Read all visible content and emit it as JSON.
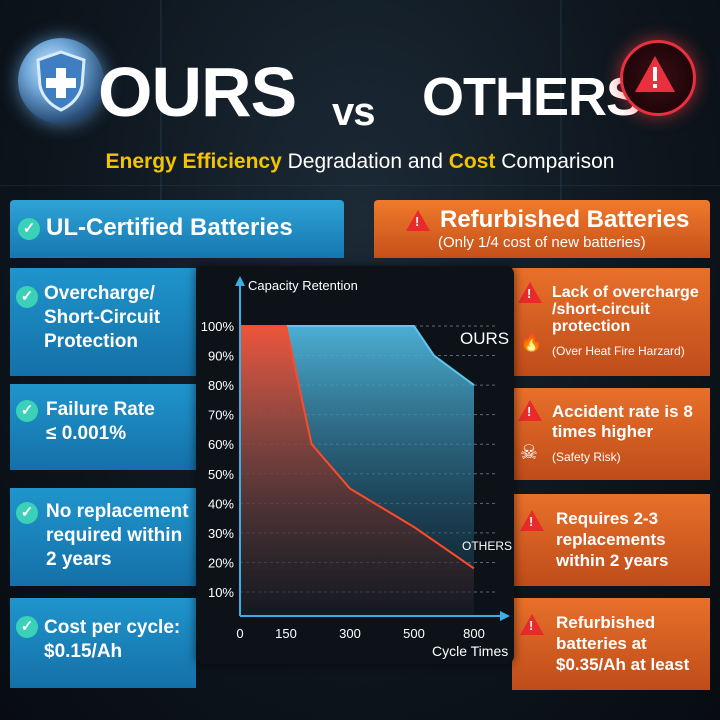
{
  "header": {
    "ours": "OURS",
    "vs": "vs",
    "others": "OTHERS",
    "subtitle_parts": [
      "Energy Efficiency",
      " Degradation and ",
      "Cost",
      " Comparison"
    ]
  },
  "left_panel": {
    "title": "UL-Certified Batteries",
    "items": [
      {
        "label": "Overcharge/\nShort-Circuit\nProtection"
      },
      {
        "label": "Failure Rate\n≤ 0.001%"
      },
      {
        "label": "No replacement\nrequired within\n2 years"
      },
      {
        "label": "Cost per cycle:\n$0.15/Ah"
      }
    ]
  },
  "right_panel": {
    "title": "Refurbished Batteries",
    "subtitle": "(Only 1/4 cost of new batteries)",
    "items": [
      {
        "label": "Lack of overcharge\n/short-circuit\nprotection",
        "note": "(Over Heat Fire Harzard)"
      },
      {
        "label": "Accident rate is 8\ntimes higher",
        "note": "(Safety Risk)"
      },
      {
        "label": "Requires 2-3\nreplacements\nwithin 2 years",
        "note": ""
      },
      {
        "label": "Refurbished\nbatteries at\n$0.35/Ah at least",
        "note": ""
      }
    ]
  },
  "icons": {
    "shield": "shield-plus-icon",
    "alert": "warning-triangle-icon",
    "check": "check-shield-icon",
    "fire": "fire-icon",
    "skull": "skull-icon"
  },
  "colors": {
    "accent_blue": "#1f95cc",
    "accent_orange": "#e8702a",
    "highlight_yellow": "#f5c400",
    "ours_line": "#5ec6e8",
    "others_line": "#ff4a2a"
  },
  "chart_data": {
    "type": "line",
    "ylabel": "Capacity Retention",
    "xlabel": "Cycle Times",
    "y_ticks": [
      "100%",
      "90%",
      "80%",
      "70%",
      "60%",
      "50%",
      "40%",
      "30%",
      "20%",
      "10%"
    ],
    "x_ticks": [
      "0",
      "150",
      "300",
      "500",
      "800"
    ],
    "ylim": [
      10,
      100
    ],
    "grid": "horizontal-dashed",
    "series": [
      {
        "name": "OURS",
        "points": [
          [
            0,
            100
          ],
          [
            150,
            100
          ],
          [
            500,
            100
          ],
          [
            600,
            90
          ],
          [
            800,
            80
          ]
        ]
      },
      {
        "name": "OTHERS",
        "points": [
          [
            0,
            100
          ],
          [
            150,
            100
          ],
          [
            180,
            80
          ],
          [
            210,
            60
          ],
          [
            300,
            45
          ],
          [
            500,
            32
          ],
          [
            800,
            18
          ]
        ]
      }
    ]
  }
}
